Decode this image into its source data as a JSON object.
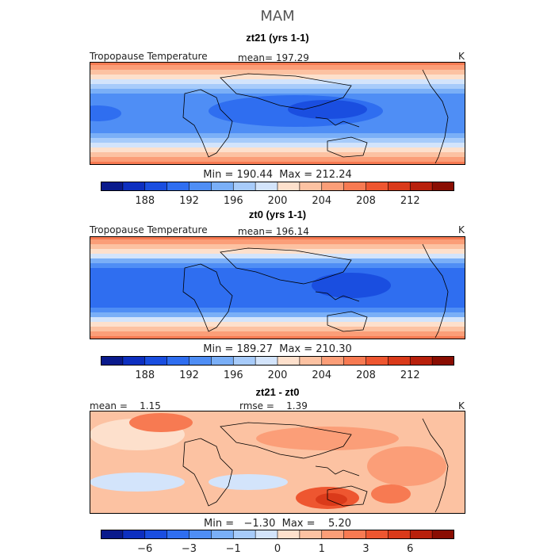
{
  "header": {
    "season": "MAM"
  },
  "panels": [
    {
      "title": "zt21 (yrs 1-1)",
      "field": "Tropopause Temperature",
      "stat": "mean= 197.29",
      "units": "K",
      "minmax": "Min = 190.44  Max = 212.24",
      "colorbar_ticks": [
        "188",
        "192",
        "196",
        "200",
        "204",
        "208",
        "212"
      ]
    },
    {
      "title": "zt0 (yrs 1-1)",
      "field": "Tropopause Temperature",
      "stat": "mean= 196.14",
      "units": "K",
      "minmax": "Min = 189.27  Max = 210.30",
      "colorbar_ticks": [
        "188",
        "192",
        "196",
        "200",
        "204",
        "208",
        "212"
      ]
    },
    {
      "title": "zt21 - zt0",
      "mean": "mean =    1.15",
      "rmse": "rmse =    1.39",
      "units": "K",
      "minmax": "Min =   −1.30  Max =    5.20",
      "colorbar_ticks": [
        "−6",
        "−3",
        "−1",
        "0",
        "1",
        "3",
        "6"
      ]
    }
  ],
  "colors": {
    "palette": [
      "#0a1a8c",
      "#0d2fc0",
      "#1a4ee0",
      "#2f6ef0",
      "#4f8ef5",
      "#7aaff7",
      "#a7cbfa",
      "#d3e4fb",
      "#fde0cc",
      "#fcc2a2",
      "#fb9e78",
      "#f77a52",
      "#ee5630",
      "#da3a1a",
      "#b8200c",
      "#8a0d02"
    ],
    "frame": "#000000"
  }
}
